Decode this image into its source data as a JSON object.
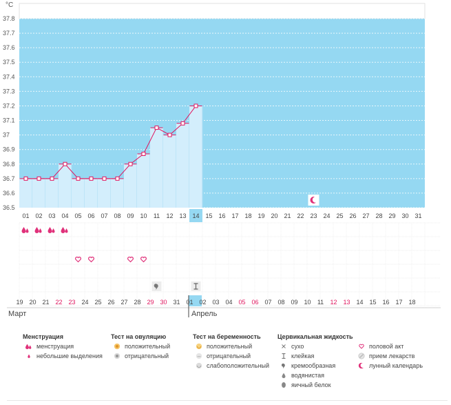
{
  "chart_data": {
    "type": "area",
    "unit_label": "°C",
    "y_ticks": [
      "37.8",
      "37.7",
      "37.6",
      "37.5",
      "37.4",
      "37.3",
      "37.2",
      "37.1",
      "37",
      "36.9",
      "36.8",
      "36.7",
      "36.6",
      "36.5"
    ],
    "ylim": [
      36.5,
      37.8
    ],
    "top_days": [
      "01",
      "02",
      "03",
      "04",
      "05",
      "06",
      "07",
      "08",
      "09",
      "10",
      "11",
      "12",
      "13",
      "14",
      "15",
      "16",
      "17",
      "18",
      "19",
      "20",
      "21",
      "22",
      "23",
      "24",
      "25",
      "26",
      "27",
      "28",
      "29",
      "30",
      "31"
    ],
    "current_day_index": 13,
    "temperatures": [
      36.7,
      36.7,
      36.7,
      36.8,
      36.7,
      36.7,
      36.7,
      36.7,
      36.8,
      36.87,
      37.05,
      37.0,
      37.08,
      37.2
    ],
    "bottom_dates": [
      "19",
      "20",
      "21",
      "22",
      "23",
      "24",
      "25",
      "26",
      "27",
      "28",
      "29",
      "30",
      "31",
      "01",
      "02",
      "03",
      "04",
      "05",
      "06",
      "07",
      "08",
      "09",
      "10",
      "11",
      "12",
      "13",
      "14",
      "15",
      "16",
      "17",
      "18"
    ],
    "highlighted_bottom_indices": [
      3,
      4,
      10,
      11,
      17,
      18,
      24,
      25
    ],
    "today_bottom_index": 13,
    "month_left": "Март",
    "month_right": "Апрель",
    "rows": {
      "menstruation": [
        0,
        1,
        2,
        3
      ],
      "intercourse": [
        4,
        5,
        8,
        9
      ],
      "cervical_fluid": {
        "creamy": [
          10
        ],
        "sticky": [
          13
        ]
      },
      "moon": [
        22
      ]
    },
    "colors": {
      "grid_bg": "#95d8f2",
      "area_fill": "#d3eefc",
      "line": "#e0155e",
      "marker_fill": "#ffffff",
      "weekend_red": "#e0155e",
      "today_cell": "#95d8f2",
      "pink_icon": "#e0317a"
    }
  },
  "legend": {
    "menstruation": {
      "title": "Менструация",
      "items": [
        {
          "label": "менструация",
          "icon": "drops-icon"
        },
        {
          "label": "небольшие выделения",
          "icon": "small-drop-icon"
        }
      ]
    },
    "ovulation": {
      "title": "Тест на овуляцию",
      "items": [
        {
          "label": "положительный",
          "icon": "ovulation-positive-icon"
        },
        {
          "label": "отрицательный",
          "icon": "ovulation-negative-icon"
        }
      ]
    },
    "pregnancy": {
      "title": "Тест на беременность",
      "items": [
        {
          "label": "положительный",
          "icon": "pregnancy-positive-icon"
        },
        {
          "label": "отрицательный",
          "icon": "pregnancy-negative-icon"
        },
        {
          "label": "слабоположительный",
          "icon": "pregnancy-weak-icon"
        }
      ]
    },
    "cervical": {
      "title": "Цервикальная жидкость",
      "items": [
        {
          "label": "сухо",
          "icon": "dry-icon"
        },
        {
          "label": "клейкая",
          "icon": "sticky-icon"
        },
        {
          "label": "кремообразная",
          "icon": "creamy-icon"
        },
        {
          "label": "водянистая",
          "icon": "watery-icon"
        },
        {
          "label": "яичный белок",
          "icon": "egg-white-icon"
        }
      ]
    },
    "other": {
      "items": [
        {
          "label": "половой акт",
          "icon": "heart-icon"
        },
        {
          "label": "прием лекарств",
          "icon": "pill-icon"
        },
        {
          "label": "лунный календарь",
          "icon": "moon-icon"
        }
      ]
    }
  }
}
